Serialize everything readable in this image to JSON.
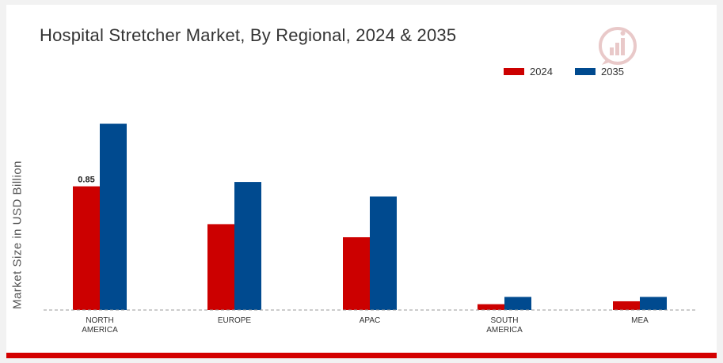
{
  "title": "Hospital Stretcher Market, By Regional, 2024 & 2035",
  "colors": {
    "series_2024": "#cc0000",
    "series_2035": "#004a8f",
    "accent": "#d40000"
  },
  "logo": {
    "icon": "bar-chart-logo-icon"
  },
  "chart_data": {
    "type": "bar",
    "title": "Hospital Stretcher Market, By Regional, 2024 & 2035",
    "xlabel": "",
    "ylabel": "Market Size in USD Billion",
    "categories": [
      "NORTH\nAMERICA",
      "EUROPE",
      "APAC",
      "SOUTH\nAMERICA",
      "MEA"
    ],
    "series": [
      {
        "name": "2024",
        "color": "#cc0000",
        "values": [
          0.85,
          0.59,
          0.5,
          0.04,
          0.06
        ]
      },
      {
        "name": "2035",
        "color": "#004a8f",
        "values": [
          1.28,
          0.88,
          0.78,
          0.09,
          0.09
        ]
      }
    ],
    "data_labels": [
      {
        "series": 0,
        "index": 0,
        "text": "0.85"
      }
    ],
    "ylim": [
      0,
      1.6
    ],
    "grid": false,
    "baseline": "dashed",
    "legend_position": "top-right"
  }
}
